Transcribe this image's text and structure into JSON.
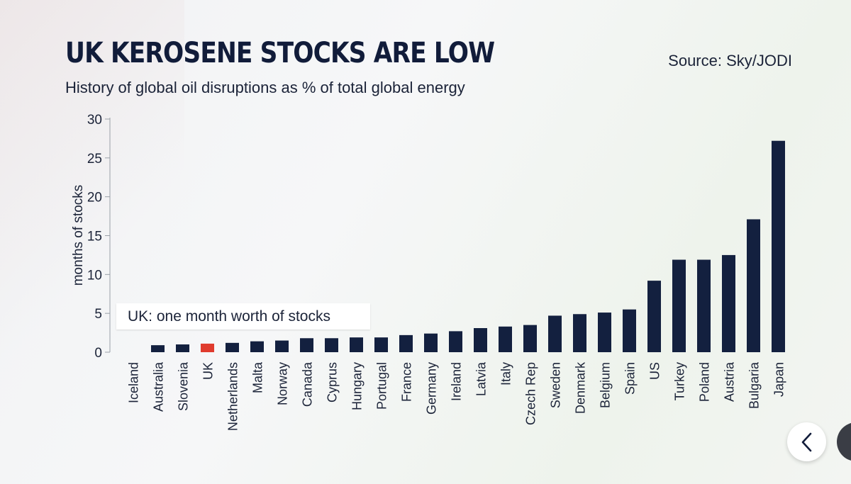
{
  "header": {
    "title": "UK KEROSENE STOCKS ARE LOW",
    "subtitle": "History of global oil disruptions as % of total global energy",
    "source": "Source: Sky/JODI"
  },
  "annotation": {
    "text": "UK: one month worth of stocks"
  },
  "colors": {
    "bar": "#13203f",
    "highlight": "#e03b2e",
    "axis": "#9aa0a8"
  },
  "nav": {
    "back_icon": "chevron-left-icon",
    "next_icon": "next-icon"
  },
  "chart_data": {
    "type": "bar",
    "title": "UK KEROSENE STOCKS ARE LOW",
    "xlabel": "",
    "ylabel": "months of stocks",
    "ylim": [
      0,
      30
    ],
    "yticks": [
      0,
      5,
      10,
      15,
      20,
      25,
      30
    ],
    "highlight": "UK",
    "categories": [
      "Iceland",
      "Australia",
      "Slovenia",
      "UK",
      "Netherlands",
      "Malta",
      "Norway",
      "Canada",
      "Cyprus",
      "Hungary",
      "Portugal",
      "France",
      "Germany",
      "Ireland",
      "Latvia",
      "Italy",
      "Czech Rep",
      "Sweden",
      "Denmark",
      "Belgium",
      "Spain",
      "US",
      "Turkey",
      "Poland",
      "Austria",
      "Bulgaria",
      "Japan"
    ],
    "values": [
      0,
      0.9,
      1.0,
      1.1,
      1.2,
      1.4,
      1.5,
      1.8,
      1.8,
      1.9,
      1.9,
      2.2,
      2.4,
      2.7,
      3.1,
      3.3,
      3.5,
      4.7,
      4.9,
      5.1,
      5.5,
      9.2,
      11.9,
      11.9,
      12.5,
      17.1,
      27.2
    ],
    "grid": false
  }
}
